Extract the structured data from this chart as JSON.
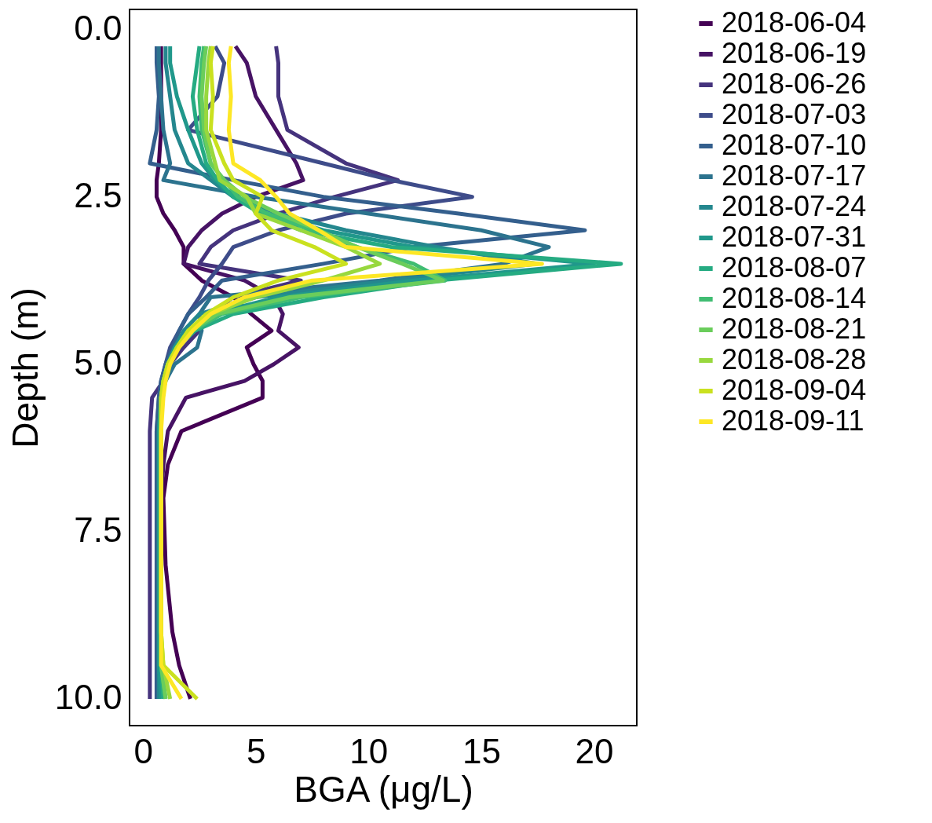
{
  "chart_data": {
    "type": "line",
    "xlabel": "BGA (μg/L)",
    "ylabel": "Depth (m)",
    "xlim": [
      -0.6,
      21.9
    ],
    "xticks": [
      0,
      5,
      10,
      15,
      20
    ],
    "ylim": [
      10.4,
      -0.3
    ],
    "yticks": [
      {
        "value": 0,
        "label": "0.0"
      },
      2.5,
      {
        "value": 5,
        "label": "5.0"
      },
      7.5,
      {
        "value": 10,
        "label": "10.0"
      }
    ],
    "grid": false,
    "legend": "right",
    "marker": "none",
    "line_style": "solid",
    "series": [
      {
        "name": "2018-06-04",
        "color": "#440154",
        "x": [
          0.8,
          0.8,
          0.8,
          0.8,
          0.7,
          0.6,
          0.6,
          0.9,
          1.4,
          1.8,
          1.8,
          2.6,
          4.0,
          4.8,
          5.7,
          4.6,
          4.9,
          5.3,
          5.3,
          1.7,
          1.1,
          0.9,
          1.0,
          1.3,
          1.6,
          2.1
        ],
        "values": [
          0.25,
          0.5,
          1,
          1.5,
          2,
          2.25,
          2.5,
          2.75,
          3,
          3.25,
          3.5,
          3.75,
          4,
          4.25,
          4.5,
          4.75,
          5,
          5.25,
          5.5,
          6,
          6.5,
          7,
          8,
          9,
          9.5,
          10
        ]
      },
      {
        "name": "2018-06-19",
        "color": "#471365",
        "x": [
          4.1,
          4.6,
          5.0,
          5.9,
          6.8,
          7.1,
          5.0,
          3.5,
          2.6,
          2.0,
          1.8,
          4.5,
          5.8,
          6.2,
          6.0,
          6.9,
          5.8,
          4.5,
          1.9,
          1.1,
          0.9,
          0.8,
          0.8,
          0.8
        ],
        "values": [
          0.25,
          0.5,
          1,
          1.5,
          2,
          2.25,
          2.5,
          2.75,
          3,
          3.25,
          3.5,
          3.75,
          4,
          4.25,
          4.5,
          4.75,
          5,
          5.25,
          5.5,
          6,
          6.5,
          7,
          8,
          9
        ]
      },
      {
        "name": "2018-06-26",
        "color": "#45337d",
        "x": [
          5.9,
          6.0,
          6.0,
          6.4,
          9.0,
          11.3,
          8.5,
          6.0,
          4.0,
          3.0,
          2.5,
          7.0,
          4.0,
          3.0,
          2.5,
          1.8,
          1.2,
          0.9,
          0.4,
          0.3,
          0.3,
          0.3,
          0.3,
          0.3,
          0.3,
          0.3
        ],
        "values": [
          0.25,
          0.5,
          1,
          1.5,
          2,
          2.25,
          2.5,
          2.75,
          3,
          3.25,
          3.5,
          3.75,
          4,
          4.25,
          4.5,
          4.75,
          5,
          5.25,
          5.5,
          6,
          6.5,
          7,
          8,
          9,
          9.5,
          10
        ]
      },
      {
        "name": "2018-07-03",
        "color": "#3e4c8a",
        "x": [
          3.2,
          3.6,
          3.3,
          2.0,
          8.0,
          11.0,
          14.6,
          9.0,
          6.0,
          4.0,
          3.5,
          2.9,
          2.5,
          2.0,
          1.6,
          1.2,
          1.0,
          0.8,
          0.7,
          0.6,
          0.6,
          0.6,
          0.6,
          0.6,
          0.6,
          0.6
        ],
        "values": [
          0.25,
          0.5,
          1,
          1.5,
          2,
          2.25,
          2.5,
          2.75,
          3,
          3.25,
          3.5,
          3.75,
          4,
          4.25,
          4.5,
          4.75,
          5,
          5.25,
          5.5,
          6,
          6.5,
          7,
          8,
          9,
          9.5,
          10
        ]
      },
      {
        "name": "2018-07-10",
        "color": "#345f8d",
        "x": [
          0.6,
          0.6,
          0.7,
          0.6,
          0.3,
          4.0,
          8.0,
          14.0,
          19.6,
          12.0,
          8.0,
          3.5,
          2.8,
          2.0,
          1.6,
          1.3,
          1.0,
          0.8,
          0.7,
          0.6,
          0.6,
          0.6,
          0.6,
          0.6,
          0.6,
          0.6
        ],
        "values": [
          0.25,
          0.5,
          1,
          1.5,
          2,
          2.25,
          2.5,
          2.75,
          3,
          3.25,
          3.5,
          3.75,
          4,
          4.25,
          4.5,
          4.75,
          5,
          5.25,
          5.5,
          6,
          6.5,
          7,
          8,
          9,
          9.5,
          10
        ]
      },
      {
        "name": "2018-07-17",
        "color": "#2c738e",
        "x": [
          0.7,
          0.7,
          0.8,
          0.9,
          1.2,
          0.9,
          5.0,
          10.0,
          15.0,
          18.0,
          16.0,
          10.5,
          3.0,
          2.5,
          2.6,
          2.4,
          1.4,
          1.0,
          0.8,
          0.7,
          0.7,
          0.7,
          0.7,
          0.7,
          0.7,
          0.7
        ],
        "values": [
          0.25,
          0.5,
          1,
          1.5,
          2,
          2.25,
          2.5,
          2.75,
          3,
          3.25,
          3.5,
          3.75,
          4,
          4.25,
          4.5,
          4.75,
          5,
          5.25,
          5.5,
          6,
          6.5,
          7,
          8,
          9,
          9.5,
          10
        ]
      },
      {
        "name": "2018-07-24",
        "color": "#24878e",
        "x": [
          1.0,
          1.0,
          1.2,
          1.4,
          2.0,
          3.0,
          4.0,
          6.0,
          9.0,
          13.0,
          17.5,
          11.0,
          5.0,
          2.5,
          1.8,
          1.4,
          1.1,
          0.9,
          0.8,
          0.7,
          0.7,
          0.7,
          0.7,
          0.7,
          0.7,
          0.7
        ],
        "values": [
          0.25,
          0.5,
          1,
          1.5,
          2,
          2.25,
          2.5,
          2.75,
          3,
          3.25,
          3.5,
          3.75,
          4,
          4.25,
          4.5,
          4.75,
          5,
          5.25,
          5.5,
          6,
          6.5,
          7,
          8,
          9,
          9.5,
          10
        ]
      },
      {
        "name": "2018-07-31",
        "color": "#20988b",
        "x": [
          1.2,
          1.2,
          1.5,
          2.0,
          2.6,
          3.2,
          4.0,
          5.5,
          8.0,
          12.0,
          20.0,
          12.0,
          6.0,
          3.0,
          2.0,
          1.4,
          1.1,
          0.9,
          0.8,
          0.7,
          0.7,
          0.7,
          0.7,
          0.7,
          0.7,
          0.8
        ],
        "values": [
          0.25,
          0.5,
          1,
          1.5,
          2,
          2.25,
          2.5,
          2.75,
          3,
          3.25,
          3.5,
          3.75,
          4,
          4.25,
          4.5,
          4.75,
          5,
          5.25,
          5.5,
          6,
          6.5,
          7,
          8,
          9,
          9.5,
          10
        ]
      },
      {
        "name": "2018-08-07",
        "color": "#25ab82",
        "x": [
          2.5,
          2.4,
          2.2,
          2.4,
          2.8,
          3.3,
          4.0,
          5.2,
          7.0,
          11.0,
          21.2,
          13.0,
          8.0,
          4.0,
          2.3,
          1.5,
          1.1,
          0.9,
          0.8,
          0.8,
          0.8,
          0.8,
          0.8,
          0.8,
          0.8,
          0.9
        ],
        "values": [
          0.25,
          0.5,
          1,
          1.5,
          2,
          2.25,
          2.5,
          2.75,
          3,
          3.25,
          3.5,
          3.75,
          4,
          4.25,
          4.5,
          4.75,
          5,
          5.25,
          5.5,
          6,
          6.5,
          7,
          8,
          9,
          9.5,
          10
        ]
      },
      {
        "name": "2018-08-14",
        "color": "#40bd72",
        "x": [
          2.7,
          2.6,
          2.5,
          2.6,
          3.0,
          3.6,
          4.2,
          5.5,
          7.5,
          9.5,
          12.0,
          13.4,
          7.0,
          3.5,
          2.2,
          1.5,
          1.1,
          0.9,
          0.8,
          0.8,
          0.8,
          0.8,
          0.8,
          0.8,
          0.8,
          1.0
        ],
        "values": [
          0.25,
          0.5,
          1,
          1.5,
          2,
          2.25,
          2.5,
          2.75,
          3,
          3.25,
          3.5,
          3.75,
          4,
          4.25,
          4.5,
          4.75,
          5,
          5.25,
          5.5,
          6,
          6.5,
          7,
          8,
          9,
          9.5,
          10
        ]
      },
      {
        "name": "2018-08-21",
        "color": "#6acd5b",
        "x": [
          2.8,
          2.7,
          2.6,
          2.7,
          3.0,
          3.6,
          4.5,
          6.0,
          7.8,
          9.5,
          11.5,
          13.3,
          6.5,
          3.3,
          2.1,
          1.5,
          1.1,
          0.9,
          0.8,
          0.8,
          0.8,
          0.8,
          0.8,
          0.8,
          0.8,
          1.0
        ],
        "values": [
          0.25,
          0.5,
          1,
          1.5,
          2,
          2.25,
          2.5,
          2.75,
          3,
          3.25,
          3.5,
          3.75,
          4,
          4.25,
          4.5,
          4.75,
          5,
          5.25,
          5.5,
          6,
          6.5,
          7,
          8,
          9,
          9.5,
          10
        ]
      },
      {
        "name": "2018-08-28",
        "color": "#98d83e",
        "x": [
          3.0,
          2.9,
          2.8,
          2.8,
          3.2,
          3.4,
          4.6,
          5.0,
          7.0,
          9.0,
          10.5,
          8.0,
          5.0,
          3.0,
          2.0,
          1.5,
          1.1,
          0.9,
          0.8,
          0.8,
          0.8,
          0.8,
          0.8,
          0.8,
          0.9,
          1.2
        ],
        "values": [
          0.25,
          0.5,
          1,
          1.5,
          2,
          2.25,
          2.5,
          2.75,
          3,
          3.25,
          3.5,
          3.75,
          4,
          4.25,
          4.5,
          4.75,
          5,
          5.25,
          5.5,
          6,
          6.5,
          7,
          8,
          9,
          9.5,
          10
        ]
      },
      {
        "name": "2018-09-04",
        "color": "#cae11f",
        "x": [
          3.1,
          3.0,
          3.1,
          3.0,
          3.6,
          4.0,
          5.3,
          5.0,
          5.7,
          7.6,
          9.0,
          6.0,
          4.0,
          2.8,
          2.0,
          1.5,
          1.1,
          0.9,
          0.8,
          0.8,
          0.8,
          0.8,
          0.8,
          0.8,
          0.9,
          2.4
        ],
        "values": [
          0.25,
          0.5,
          1,
          1.5,
          2,
          2.25,
          2.5,
          2.75,
          3,
          3.25,
          3.5,
          3.75,
          4,
          4.25,
          4.5,
          4.75,
          5,
          5.25,
          5.5,
          6,
          6.5,
          7,
          8,
          9,
          9.5,
          10
        ]
      },
      {
        "name": "2018-09-11",
        "color": "#fde725",
        "x": [
          3.9,
          3.8,
          3.9,
          3.8,
          4.0,
          5.2,
          5.9,
          6.5,
          7.8,
          9.0,
          17.7,
          7.5,
          4.5,
          3.0,
          2.2,
          1.6,
          1.2,
          1.0,
          0.9,
          0.8,
          0.8,
          0.8,
          0.8,
          0.8,
          0.8,
          1.7
        ],
        "values": [
          0.25,
          0.5,
          1,
          1.5,
          2,
          2.25,
          2.5,
          2.75,
          3,
          3.25,
          3.5,
          3.75,
          4,
          4.25,
          4.5,
          4.75,
          5,
          5.25,
          5.5,
          6,
          6.5,
          7,
          8,
          9,
          9.5,
          10
        ]
      }
    ]
  }
}
